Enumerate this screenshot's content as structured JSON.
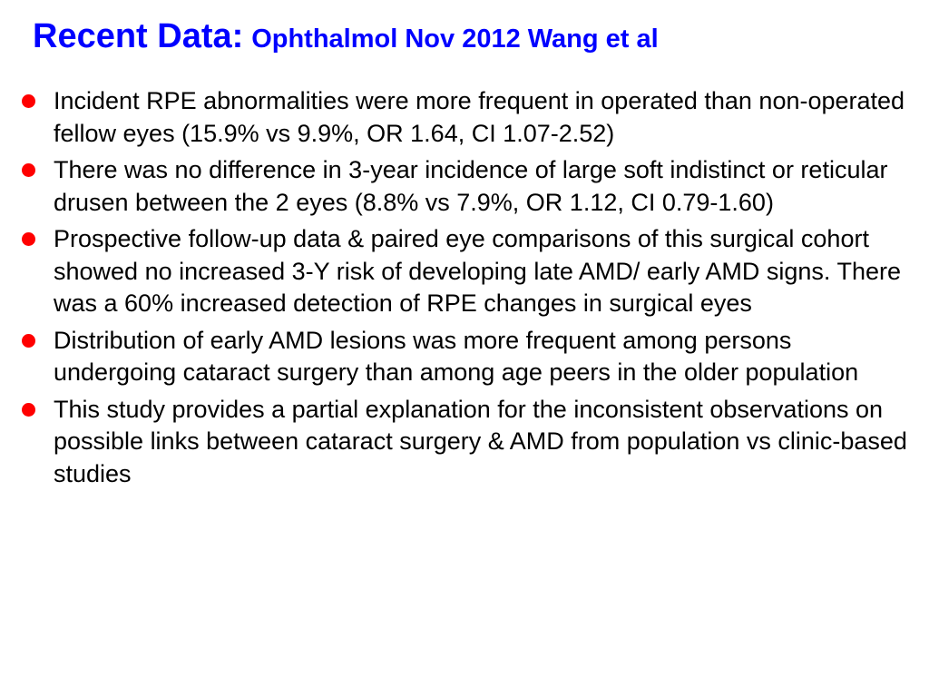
{
  "slide": {
    "title_main": "Recent Data:",
    "title_sub": "Ophthalmol Nov 2012 Wang et al",
    "bullets": [
      "Incident RPE abnormalities were more frequent in operated than non-operated fellow eyes (15.9% vs 9.9%, OR 1.64, CI 1.07-2.52)",
      "There was no difference in 3-year incidence of large soft indistinct or reticular drusen between the 2 eyes (8.8% vs 7.9%, OR 1.12, CI 0.79-1.60)",
      "Prospective follow-up data & paired eye comparisons of this surgical cohort showed no increased 3-Y risk of developing late AMD/ early AMD signs. There was a 60% increased detection of RPE changes in surgical eyes",
      "Distribution of early AMD lesions was more frequent among persons undergoing cataract surgery than among age peers in the older population",
      "This study provides a partial explanation for the inconsistent observations on possible links between cataract surgery & AMD from population vs clinic-based studies"
    ]
  },
  "colors": {
    "title": "#0000ff",
    "bullet_marker": "#ff0000",
    "text": "#000000",
    "background": "#ffffff"
  },
  "icons": {
    "bullet_marker": "red-filled-circle"
  }
}
